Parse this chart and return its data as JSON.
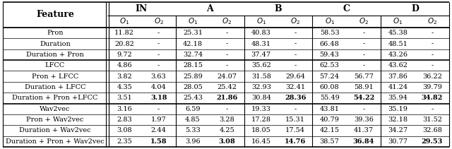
{
  "rows": [
    {
      "feature": "Pron",
      "IN_O1": "11.82",
      "IN_O2": "-",
      "A_O1": "25.31",
      "A_O2": "-",
      "B_O1": "40.83",
      "B_O2": "-",
      "C_O1": "58.53",
      "C_O2": "-",
      "D_O1": "45.38",
      "D_O2": "-"
    },
    {
      "feature": "Duration",
      "IN_O1": "20.82",
      "IN_O2": "-",
      "A_O1": "42.18",
      "A_O2": "-",
      "B_O1": "48.31",
      "B_O2": "-",
      "C_O1": "66.48",
      "C_O2": "-",
      "D_O1": "48.51",
      "D_O2": "-"
    },
    {
      "feature": "Duration + Pron",
      "IN_O1": "9.72",
      "IN_O2": "-",
      "A_O1": "32.74",
      "A_O2": "-",
      "B_O1": "37.47",
      "B_O2": "-",
      "C_O1": "59.43",
      "C_O2": "-",
      "D_O1": "43.26",
      "D_O2": "-"
    },
    {
      "feature": "LFCC",
      "IN_O1": "4.86",
      "IN_O2": "-",
      "A_O1": "28.15",
      "A_O2": "-",
      "B_O1": "35.62",
      "B_O2": "-",
      "C_O1": "62.53",
      "C_O2": "-",
      "D_O1": "43.62",
      "D_O2": "-"
    },
    {
      "feature": "Pron + LFCC",
      "IN_O1": "3.82",
      "IN_O2": "3.63",
      "A_O1": "25.89",
      "A_O2": "24.07",
      "B_O1": "31.58",
      "B_O2": "29.64",
      "C_O1": "57.24",
      "C_O2": "56.77",
      "D_O1": "37.86",
      "D_O2": "36.22"
    },
    {
      "feature": "Duration + LFCC",
      "IN_O1": "4.35",
      "IN_O2": "4.04",
      "A_O1": "28.05",
      "A_O2": "25.42",
      "B_O1": "32.93",
      "B_O2": "32.41",
      "C_O1": "60.08",
      "C_O2": "58.91",
      "D_O1": "41.24",
      "D_O2": "39.79"
    },
    {
      "feature": "Duration + Pron +LFCC",
      "IN_O1": "3.51",
      "IN_O2": "3.18",
      "A_O1": "25.43",
      "A_O2": "21.86",
      "B_O1": "30.84",
      "B_O2": "28.36",
      "C_O1": "55.49",
      "C_O2": "54.22",
      "D_O1": "35.94",
      "D_O2": "34.82"
    },
    {
      "feature": "Wav2vec",
      "IN_O1": "3.16",
      "IN_O2": "-",
      "A_O1": "6.59",
      "A_O2": "-",
      "B_O1": "19.33",
      "B_O2": "-",
      "C_O1": "43.81",
      "C_O2": "-",
      "D_O1": "35.19",
      "D_O2": "-"
    },
    {
      "feature": "Pron + Wav2vec",
      "IN_O1": "2.83",
      "IN_O2": "1.97",
      "A_O1": "4.85",
      "A_O2": "3.28",
      "B_O1": "17.28",
      "B_O2": "15.31",
      "C_O1": "40.79",
      "C_O2": "39.36",
      "D_O1": "32.18",
      "D_O2": "31.52"
    },
    {
      "feature": "Duration + Wav2vec",
      "IN_O1": "3.08",
      "IN_O2": "2.44",
      "A_O1": "5.33",
      "A_O2": "4.25",
      "B_O1": "18.05",
      "B_O2": "17.54",
      "C_O1": "42.15",
      "C_O2": "41.37",
      "D_O1": "34.27",
      "D_O2": "32.68"
    },
    {
      "feature": "Duration + Pron + Wav2vec",
      "IN_O1": "2.35",
      "IN_O2": "1.58",
      "A_O1": "3.96",
      "A_O2": "3.08",
      "B_O1": "16.45",
      "B_O2": "14.76",
      "C_O1": "38.57",
      "C_O2": "36.84",
      "D_O1": "30.77",
      "D_O2": "29.53"
    }
  ],
  "bold_cells": [
    [
      6,
      "IN_O2"
    ],
    [
      6,
      "A_O2"
    ],
    [
      6,
      "B_O2"
    ],
    [
      6,
      "C_O2"
    ],
    [
      6,
      "D_O2"
    ],
    [
      10,
      "IN_O2"
    ],
    [
      10,
      "A_O2"
    ],
    [
      10,
      "B_O2"
    ],
    [
      10,
      "C_O2"
    ],
    [
      10,
      "D_O2"
    ]
  ],
  "section_separators": [
    3,
    7
  ],
  "groups": [
    "IN",
    "A",
    "B",
    "C",
    "D"
  ],
  "col_keys": [
    "IN_O1",
    "IN_O2",
    "A_O1",
    "A_O2",
    "B_O1",
    "B_O2",
    "C_O1",
    "C_O2",
    "D_O1",
    "D_O2"
  ]
}
